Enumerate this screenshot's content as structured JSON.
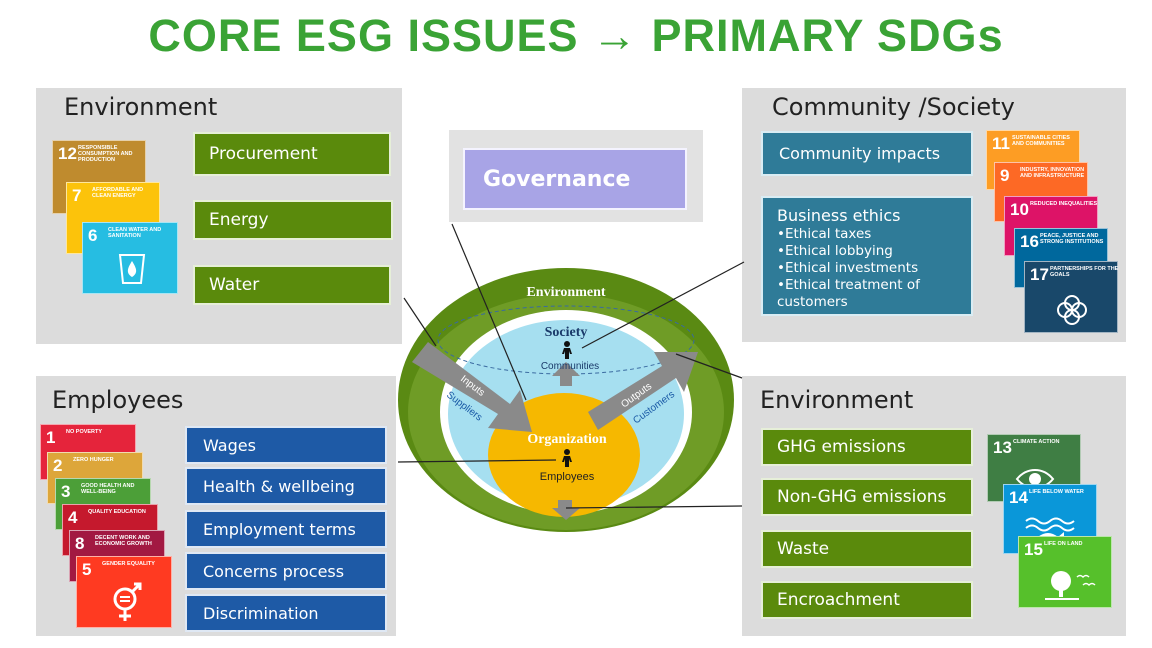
{
  "title": "CORE ESG ISSUES → PRIMARY SDGs",
  "env_top": {
    "title": "Environment",
    "items": [
      "Procurement",
      "Energy",
      "Water"
    ],
    "sdgs": [
      {
        "num": "12",
        "label": "RESPONSIBLE CONSUMPTION AND PRODUCTION",
        "color": "#bf8b2e"
      },
      {
        "num": "7",
        "label": "AFFORDABLE AND CLEAN ENERGY",
        "color": "#fcc30b"
      },
      {
        "num": "6",
        "label": "CLEAN WATER AND SANITATION",
        "color": "#26bde2"
      }
    ]
  },
  "governance": {
    "label": "Governance"
  },
  "community": {
    "title": "Community /Society",
    "impacts": "Community impacts",
    "ethics_title": "Business ethics",
    "ethics_items": [
      "Ethical taxes",
      "Ethical lobbying",
      "Ethical investments",
      "Ethical treatment of customers"
    ],
    "sdgs": [
      {
        "num": "11",
        "label": "SUSTAINABLE CITIES AND COMMUNITIES",
        "color": "#fd9d24"
      },
      {
        "num": "9",
        "label": "INDUSTRY, INNOVATION AND INFRASTRUCTURE",
        "color": "#fd6925"
      },
      {
        "num": "10",
        "label": "REDUCED INEQUALITIES",
        "color": "#dd1367"
      },
      {
        "num": "16",
        "label": "PEACE, JUSTICE AND STRONG INSTITUTIONS",
        "color": "#00689d"
      },
      {
        "num": "17",
        "label": "PARTNERSHIPS FOR THE GOALS",
        "color": "#19486a"
      }
    ]
  },
  "employees": {
    "title": "Employees",
    "items": [
      "Wages",
      "Health & wellbeing",
      "Employment terms",
      "Concerns process",
      "Discrimination"
    ],
    "sdgs": [
      {
        "num": "1",
        "label": "NO POVERTY",
        "color": "#e5243b"
      },
      {
        "num": "2",
        "label": "ZERO HUNGER",
        "color": "#dda63a"
      },
      {
        "num": "3",
        "label": "GOOD HEALTH AND WELL-BEING",
        "color": "#4c9f38"
      },
      {
        "num": "4",
        "label": "QUALITY EDUCATION",
        "color": "#c5192d"
      },
      {
        "num": "8",
        "label": "DECENT WORK AND ECONOMIC GROWTH",
        "color": "#a21942"
      },
      {
        "num": "5",
        "label": "GENDER EQUALITY",
        "color": "#ff3a21"
      }
    ]
  },
  "env_bottom": {
    "title": "Environment",
    "items": [
      "GHG emissions",
      "Non-GHG emissions",
      "Waste",
      "Encroachment"
    ],
    "sdgs": [
      {
        "num": "13",
        "label": "CLIMATE ACTION",
        "color": "#3f7e44"
      },
      {
        "num": "14",
        "label": "LIFE BELOW WATER",
        "color": "#0a97d9"
      },
      {
        "num": "15",
        "label": "LIFE ON LAND",
        "color": "#56c02b"
      }
    ]
  },
  "center": {
    "environment": "Environment",
    "society": "Society",
    "communities": "Communities",
    "organization": "Organization",
    "employees": "Employees",
    "inputs": "Inputs",
    "suppliers": "Suppliers",
    "outputs": "Outputs",
    "customers": "Customers"
  }
}
